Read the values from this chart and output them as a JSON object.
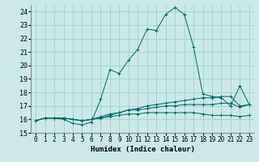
{
  "xlabel": "Humidex (Indice chaleur)",
  "xlim": [
    -0.5,
    23.5
  ],
  "ylim": [
    15,
    24.5
  ],
  "yticks": [
    15,
    16,
    17,
    18,
    19,
    20,
    21,
    22,
    23,
    24
  ],
  "xticks": [
    0,
    1,
    2,
    3,
    4,
    5,
    6,
    7,
    8,
    9,
    10,
    11,
    12,
    13,
    14,
    15,
    16,
    17,
    18,
    19,
    20,
    21,
    22,
    23
  ],
  "bg_color": "#cce8e8",
  "grid_color": "#99cccc",
  "line_color": "#006666",
  "line1_y": [
    15.9,
    16.1,
    16.1,
    16.0,
    15.7,
    15.6,
    15.8,
    17.5,
    19.7,
    19.4,
    20.4,
    21.2,
    22.7,
    22.6,
    23.8,
    24.3,
    23.8,
    21.4,
    17.9,
    17.7,
    17.6,
    17.0,
    18.5,
    17.1
  ],
  "line2_y": [
    15.9,
    16.1,
    16.1,
    16.1,
    16.0,
    15.9,
    16.0,
    16.2,
    16.4,
    16.5,
    16.7,
    16.7,
    16.8,
    16.9,
    17.0,
    17.0,
    17.1,
    17.1,
    17.1,
    17.1,
    17.2,
    17.2,
    16.9,
    17.1
  ],
  "line3_y": [
    15.9,
    16.1,
    16.1,
    16.1,
    16.0,
    15.9,
    16.0,
    16.1,
    16.2,
    16.3,
    16.4,
    16.4,
    16.5,
    16.5,
    16.5,
    16.5,
    16.5,
    16.5,
    16.4,
    16.3,
    16.3,
    16.3,
    16.2,
    16.3
  ],
  "line4_y": [
    15.9,
    16.1,
    16.1,
    16.1,
    16.0,
    15.9,
    16.0,
    16.1,
    16.3,
    16.5,
    16.7,
    16.8,
    17.0,
    17.1,
    17.2,
    17.3,
    17.4,
    17.5,
    17.6,
    17.6,
    17.7,
    17.7,
    17.0,
    17.1
  ]
}
